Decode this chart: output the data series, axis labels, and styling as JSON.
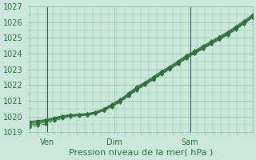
{
  "title": "",
  "xlabel": "Pression niveau de la mer( hPa )",
  "ylabel": "",
  "ylim": [
    1019,
    1027
  ],
  "yticks": [
    1019,
    1020,
    1021,
    1022,
    1023,
    1024,
    1025,
    1026,
    1027
  ],
  "xtick_labels": [
    "Ven",
    "Dim",
    "Sam"
  ],
  "xtick_positions": [
    0.08,
    0.38,
    0.72
  ],
  "vline_positions": [
    0.08,
    0.72
  ],
  "bg_color": "#cce8dc",
  "grid_color": "#88c4a8",
  "line_color": "#2d6e3a",
  "num_points": 28,
  "lines": [
    [
      1019.7,
      1019.75,
      1019.8,
      1019.9,
      1020.05,
      1020.1,
      1020.15,
      1020.2,
      1020.3,
      1020.5,
      1020.8,
      1021.1,
      1021.5,
      1021.9,
      1022.2,
      1022.55,
      1022.9,
      1023.2,
      1023.55,
      1023.9,
      1024.2,
      1024.5,
      1024.8,
      1025.1,
      1025.4,
      1025.75,
      1026.1,
      1026.5
    ],
    [
      1019.65,
      1019.7,
      1019.8,
      1019.92,
      1020.05,
      1020.12,
      1020.15,
      1020.18,
      1020.28,
      1020.48,
      1020.75,
      1021.05,
      1021.45,
      1021.85,
      1022.15,
      1022.5,
      1022.85,
      1023.15,
      1023.5,
      1023.85,
      1024.15,
      1024.45,
      1024.75,
      1025.05,
      1025.35,
      1025.7,
      1026.05,
      1026.45
    ],
    [
      1019.6,
      1019.65,
      1019.75,
      1019.88,
      1020.0,
      1020.1,
      1020.12,
      1020.15,
      1020.25,
      1020.45,
      1020.72,
      1021.02,
      1021.4,
      1021.8,
      1022.1,
      1022.45,
      1022.8,
      1023.1,
      1023.45,
      1023.8,
      1024.1,
      1024.4,
      1024.7,
      1025.0,
      1025.3,
      1025.65,
      1026.0,
      1026.4
    ],
    [
      1019.55,
      1019.6,
      1019.72,
      1019.85,
      1019.98,
      1020.07,
      1020.1,
      1020.13,
      1020.22,
      1020.42,
      1020.68,
      1020.98,
      1021.35,
      1021.75,
      1022.05,
      1022.4,
      1022.75,
      1023.05,
      1023.4,
      1023.75,
      1024.05,
      1024.35,
      1024.65,
      1024.95,
      1025.25,
      1025.6,
      1025.95,
      1026.35
    ],
    [
      1019.45,
      1019.52,
      1019.65,
      1019.8,
      1019.95,
      1020.05,
      1020.08,
      1020.1,
      1020.2,
      1020.4,
      1020.65,
      1020.95,
      1021.32,
      1021.72,
      1022.02,
      1022.37,
      1022.72,
      1023.02,
      1023.37,
      1023.72,
      1024.02,
      1024.32,
      1024.62,
      1024.92,
      1025.22,
      1025.57,
      1025.92,
      1026.32
    ],
    [
      1019.35,
      1019.42,
      1019.55,
      1019.72,
      1019.88,
      1020.0,
      1020.05,
      1020.08,
      1020.18,
      1020.37,
      1020.62,
      1020.92,
      1021.3,
      1021.68,
      1022.0,
      1022.35,
      1022.7,
      1023.0,
      1023.35,
      1023.7,
      1024.0,
      1024.3,
      1024.6,
      1024.9,
      1025.2,
      1025.55,
      1025.9,
      1026.3
    ]
  ],
  "line_styles": [
    "solid",
    "solid",
    "solid",
    "solid",
    "solid",
    "dashed"
  ],
  "marker_size": 2.2,
  "xlabel_fontsize": 8,
  "tick_fontsize": 7,
  "linewidth": 0.7
}
